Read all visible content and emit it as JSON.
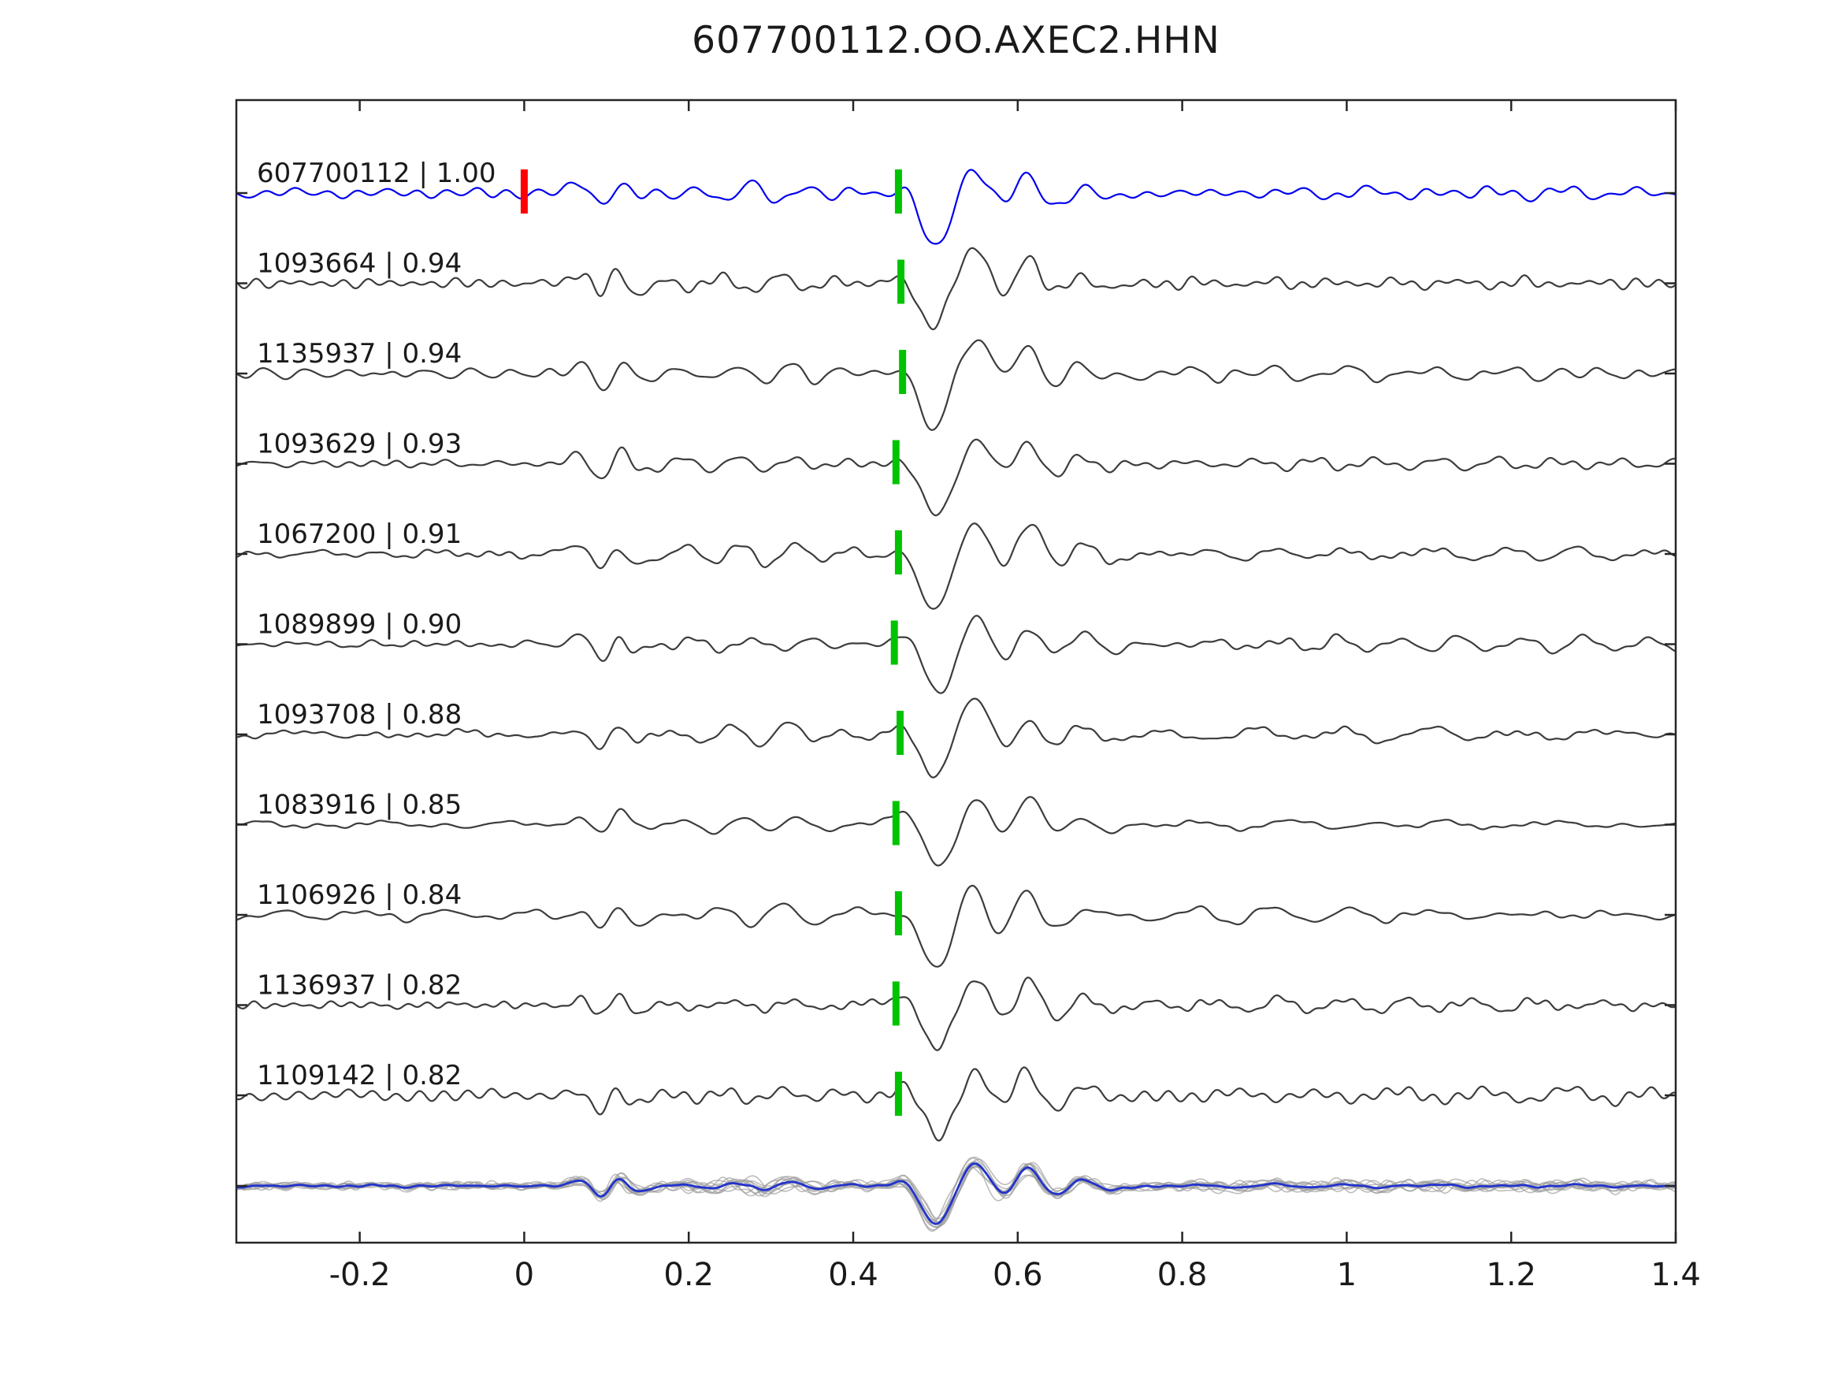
{
  "chart_data": {
    "type": "line",
    "title": "607700112.OO.AXEC2.HHN",
    "xlabel": "",
    "ylabel": "",
    "grid": false,
    "legend": "none",
    "xlim": [
      -0.35,
      1.4
    ],
    "x_ticks": [
      -0.2,
      0,
      0.2,
      0.4,
      0.6,
      0.8,
      1,
      1.2,
      1.4
    ],
    "x_tick_labels": [
      "-0.2",
      "0",
      "0.2",
      "0.4",
      "0.6",
      "0.8",
      "1",
      "1.2",
      "1.4"
    ],
    "colors": {
      "template_trace": "#0000ee",
      "detection_trace": "#3c3c3c",
      "pick_marker": "#00c300",
      "reference_marker": "#ff0000",
      "overlay_trace": "#9a9a9a",
      "stack_trace": "#2233cc",
      "axis": "#262626",
      "text": "#1a1a1a"
    },
    "reference_marker": {
      "trace_index": 0,
      "time": 0.0
    },
    "traces": [
      {
        "id": "607700112",
        "correlation": 1.0,
        "label": "607700112 | 1.00",
        "pick_time": 0.455,
        "is_template": true
      },
      {
        "id": "1093664",
        "correlation": 0.94,
        "label": "1093664 | 0.94",
        "pick_time": 0.458,
        "is_template": false
      },
      {
        "id": "1135937",
        "correlation": 0.94,
        "label": "1135937 | 0.94",
        "pick_time": 0.46,
        "is_template": false
      },
      {
        "id": "1093629",
        "correlation": 0.93,
        "label": "1093629 | 0.93",
        "pick_time": 0.452,
        "is_template": false
      },
      {
        "id": "1067200",
        "correlation": 0.91,
        "label": "1067200 | 0.91",
        "pick_time": 0.455,
        "is_template": false
      },
      {
        "id": "1089899",
        "correlation": 0.9,
        "label": "1089899 | 0.90",
        "pick_time": 0.45,
        "is_template": false
      },
      {
        "id": "1093708",
        "correlation": 0.88,
        "label": "1093708 | 0.88",
        "pick_time": 0.457,
        "is_template": false
      },
      {
        "id": "1083916",
        "correlation": 0.85,
        "label": "1083916 | 0.85",
        "pick_time": 0.452,
        "is_template": false
      },
      {
        "id": "1106926",
        "correlation": 0.84,
        "label": "1106926 | 0.84",
        "pick_time": 0.455,
        "is_template": false
      },
      {
        "id": "1136937",
        "correlation": 0.82,
        "label": "1136937 | 0.82",
        "pick_time": 0.452,
        "is_template": false
      },
      {
        "id": "1109142",
        "correlation": 0.82,
        "label": "1109142 | 0.82",
        "pick_time": 0.455,
        "is_template": false
      }
    ],
    "overlay_row": {
      "has_stack": true
    }
  }
}
